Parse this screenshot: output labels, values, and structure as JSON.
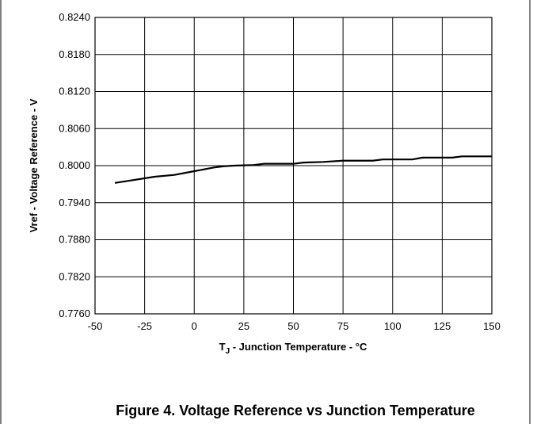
{
  "chart_data": {
    "type": "line",
    "title": "",
    "xlabel_main": "T",
    "xlabel_sub": "J",
    "xlabel_rest": " - Junction Temperature - °C",
    "ylabel": "Vref - Voltage Reference - V",
    "xlim": [
      -50,
      150
    ],
    "ylim": [
      0.776,
      0.824
    ],
    "x_ticks": [
      "-50",
      "-25",
      "0",
      "25",
      "50",
      "75",
      "100",
      "125",
      "150"
    ],
    "y_ticks": [
      "0.8240",
      "0.8180",
      "0.8120",
      "0.8060",
      "0.8000",
      "0.7940",
      "0.7880",
      "0.7820",
      "0.7760"
    ],
    "grid": true,
    "series": [
      {
        "color": "#000000",
        "x": [
          -40,
          -30,
          -20,
          -10,
          0,
          10,
          15,
          20,
          30,
          35,
          50,
          55,
          65,
          75,
          90,
          95,
          110,
          115,
          130,
          135,
          150
        ],
        "y": [
          0.7972,
          0.7977,
          0.7982,
          0.7985,
          0.7991,
          0.7997,
          0.7999,
          0.8,
          0.8001,
          0.8003,
          0.8003,
          0.8005,
          0.8006,
          0.8008,
          0.8008,
          0.801,
          0.801,
          0.8013,
          0.8013,
          0.8015,
          0.8015
        ]
      }
    ]
  },
  "caption": "Figure 4. Voltage Reference vs Junction Temperature"
}
